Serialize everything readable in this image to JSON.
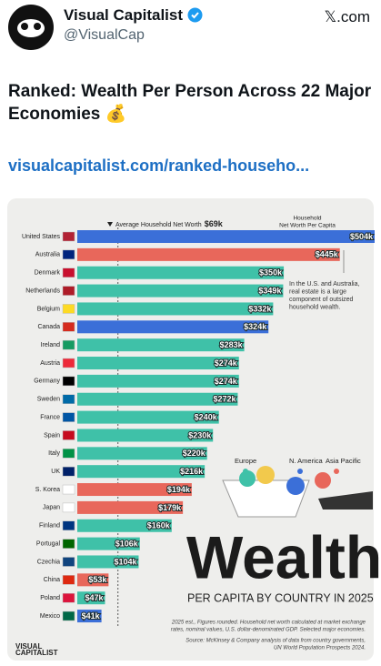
{
  "post": {
    "name": "Visual Capitalist",
    "handle": "@VisualCap",
    "site": "𝕏.com",
    "text": "Ranked: Wealth Per Person Across 22 Major Economies 💰",
    "link": "visualcapitalist.com/ranked-househo..."
  },
  "chart_data": {
    "type": "bar",
    "orientation": "horizontal",
    "title": "Wealth",
    "subtitle": "PER CAPITA BY COUNTRY IN 2025",
    "value_title": [
      "Household",
      "Net Worth Per Capita"
    ],
    "categories": [
      "United States",
      "Australia",
      "Denmark",
      "Netherlands",
      "Belgium",
      "Canada",
      "Ireland",
      "Austria",
      "Germany",
      "Sweden",
      "France",
      "Spain",
      "Italy",
      "UK",
      "S. Korea",
      "Japan",
      "Finland",
      "Portugal",
      "Czechia",
      "China",
      "Poland",
      "Mexico"
    ],
    "values": [
      504000,
      445000,
      350000,
      349000,
      332000,
      324000,
      283000,
      274000,
      274000,
      272000,
      240000,
      230000,
      220000,
      216000,
      194000,
      179000,
      160000,
      106000,
      104000,
      53000,
      47000,
      41000
    ],
    "value_labels": [
      "$504k",
      "$445k",
      "$350k",
      "$349k",
      "$332k",
      "$324k",
      "$283k",
      "$274k",
      "$274k",
      "$272k",
      "$240k",
      "$230k",
      "$220k",
      "$216k",
      "$194k",
      "$179k",
      "$160k",
      "$106k",
      "$104k",
      "$53k",
      "$47k",
      "$41k"
    ],
    "colors": [
      "#3b6fd8",
      "#e8675b",
      "#3fc1a8",
      "#3fc1a8",
      "#3fc1a8",
      "#3b6fd8",
      "#3fc1a8",
      "#3fc1a8",
      "#3fc1a8",
      "#3fc1a8",
      "#3fc1a8",
      "#3fc1a8",
      "#3fc1a8",
      "#3fc1a8",
      "#e8675b",
      "#e8675b",
      "#3fc1a8",
      "#3fc1a8",
      "#3fc1a8",
      "#e8675b",
      "#3fc1a8",
      "#3b6fd8"
    ],
    "legend": [
      {
        "name": "Europe",
        "color": "#3fc1a8"
      },
      {
        "name": "N. America",
        "color": "#3b6fd8"
      },
      {
        "name": "Asia Pacific",
        "color": "#e8675b"
      }
    ],
    "reference_line": {
      "value": 69000,
      "label": "Average Household Net Worth",
      "value_label": "$69k"
    },
    "annotation": [
      "In the U.S. and Australia,",
      "real estate is a large",
      "component of outsized",
      "household wealth."
    ],
    "notes": [
      "2025 est., Figures rounded. Household net worth calculated at market exchange",
      "rates, nominal values, U.S. dollar-denominated GDP. Selected major economies."
    ],
    "source": [
      "Source: McKinsey & Company analysis of data from country governments,",
      "UN World Population Prospects 2024."
    ],
    "brand": [
      "VISUAL",
      "CAPITALIST"
    ]
  }
}
